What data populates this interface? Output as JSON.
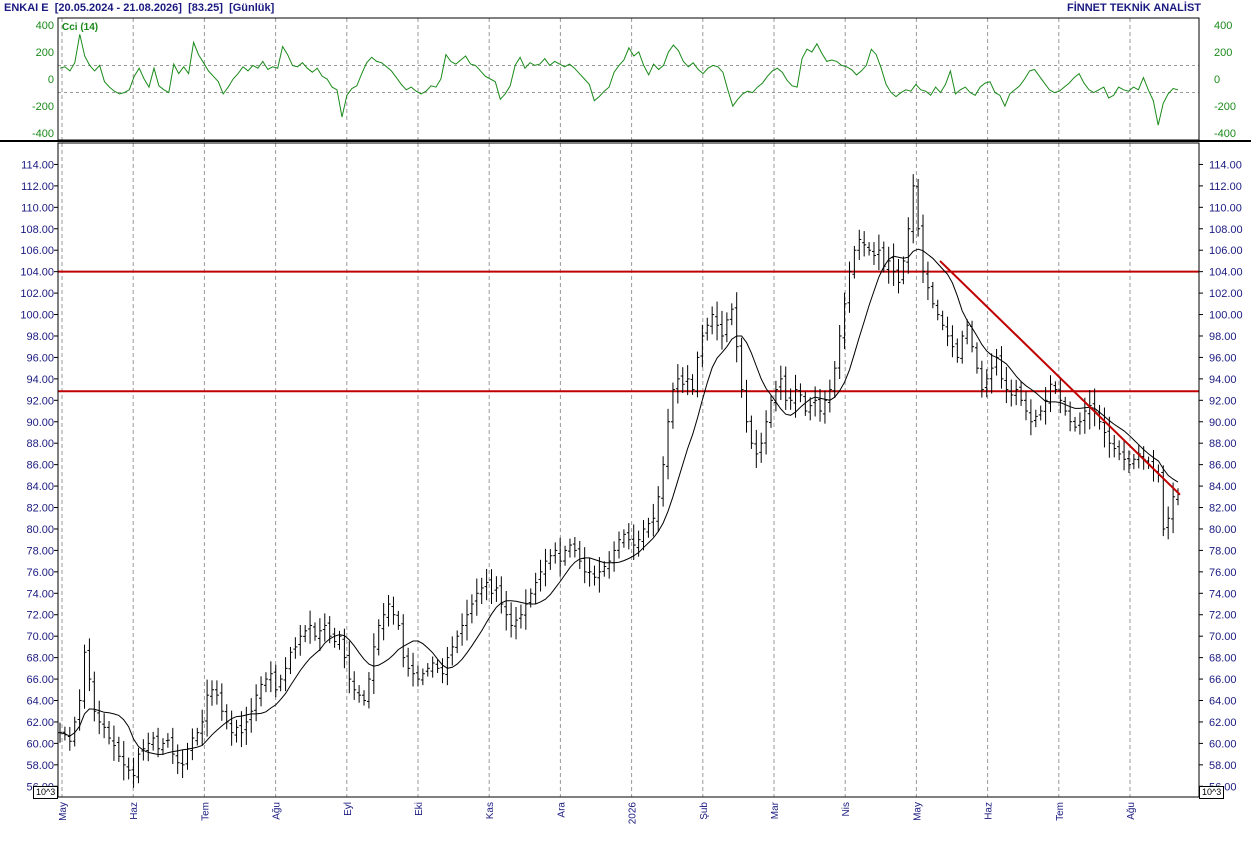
{
  "header": {
    "symbol": "ENKAI E",
    "date_range": "[20.05.2024 - 21.08.2026]",
    "last_price": "[83.25]",
    "period": "[Günlük]",
    "brand": "FİNNET TEKNİK ANALİST"
  },
  "indicator": {
    "name": "Cci (14)",
    "y_ticks": [
      "400",
      "200",
      "0",
      "-200",
      "-400"
    ],
    "y_values": [
      400,
      200,
      0,
      -200,
      -400
    ],
    "ylim": [
      -450,
      450
    ],
    "bands": [
      100,
      -100
    ]
  },
  "price_axis": {
    "unit": "10^3",
    "ylim": [
      55,
      116
    ]
  },
  "x_axis": {
    "labels": [
      "May",
      "Haz",
      "Tem",
      "Ağu",
      "Eyl",
      "Eki",
      "Kas",
      "Ara",
      "2026",
      "Şub",
      "Mar",
      "Nis",
      "May",
      "Haz",
      "Tem",
      "Ağu"
    ]
  },
  "colors": {
    "background": "#ffffff",
    "text": "#1a1a80",
    "indicator_line": "#1a8a1a",
    "horizontal_lines": "#c00000",
    "trend_line": "#c00000",
    "price_bars": "#000000",
    "moving_average": "#000000",
    "grid": "#999999"
  },
  "chart_data": [
    {
      "type": "line",
      "name": "Cci (14)",
      "ylim": [
        -450,
        450
      ],
      "grid": true,
      "x_labels": [
        "May",
        "Haz",
        "Tem",
        "Ağu",
        "Eyl",
        "Eki",
        "Kas",
        "Ara",
        "2026",
        "Şub",
        "Mar",
        "Nis",
        "May",
        "Haz",
        "Tem",
        "Ağu"
      ],
      "values": [
        80,
        90,
        60,
        120,
        330,
        170,
        100,
        60,
        100,
        -20,
        -60,
        -90,
        -110,
        -100,
        -80,
        20,
        80,
        0,
        -60,
        80,
        -50,
        -80,
        -100,
        110,
        40,
        90,
        40,
        270,
        180,
        120,
        60,
        20,
        -20,
        -110,
        -60,
        0,
        40,
        90,
        60,
        100,
        80,
        130,
        70,
        90,
        80,
        240,
        180,
        100,
        90,
        120,
        80,
        50,
        80,
        20,
        0,
        -60,
        -80,
        -280,
        -120,
        -70,
        -50,
        40,
        120,
        160,
        130,
        120,
        90,
        60,
        10,
        -40,
        -80,
        -60,
        -90,
        -110,
        -90,
        -50,
        -60,
        0,
        180,
        130,
        110,
        140,
        170,
        110,
        100,
        60,
        20,
        0,
        -20,
        -150,
        -110,
        -50,
        100,
        160,
        80,
        120,
        100,
        110,
        150,
        100,
        130,
        110,
        90,
        110,
        80,
        40,
        0,
        -40,
        -160,
        -130,
        -90,
        -60,
        50,
        100,
        140,
        230,
        170,
        200,
        100,
        30,
        110,
        70,
        100,
        200,
        250,
        210,
        130,
        90,
        120,
        70,
        40,
        80,
        100,
        90,
        50,
        -80,
        -200,
        -150,
        -110,
        -90,
        -100,
        -60,
        -30,
        20,
        60,
        80,
        50,
        -10,
        -50,
        -60,
        150,
        220,
        200,
        260,
        190,
        130,
        140,
        130,
        100,
        90,
        70,
        30,
        60,
        100,
        220,
        180,
        80,
        -40,
        -100,
        -130,
        -100,
        -80,
        -90,
        -40,
        -80,
        -90,
        -120,
        -60,
        -100,
        -40,
        60,
        -110,
        -80,
        -60,
        -100,
        -120,
        -60,
        -30,
        -20,
        -100,
        -120,
        -200,
        -110,
        -80,
        -50,
        0,
        60,
        70,
        20,
        -30,
        -80,
        -100,
        -90,
        -60,
        -30,
        10,
        40,
        -30,
        -80,
        -100,
        -80,
        -60,
        -140,
        -120,
        -60,
        -80,
        -90,
        -60,
        -80,
        10,
        -80,
        -160,
        -340,
        -180,
        -110,
        -70,
        -80
      ]
    },
    {
      "type": "ohlc",
      "name": "ENKAI E",
      "ylim": [
        55,
        116
      ],
      "y_ticks": [
        56,
        58,
        60,
        62,
        64,
        66,
        68,
        70,
        72,
        74,
        76,
        78,
        80,
        82,
        84,
        86,
        88,
        90,
        92,
        94,
        96,
        98,
        100,
        102,
        104,
        106,
        108,
        110,
        112,
        114
      ],
      "x_labels": [
        "May",
        "Haz",
        "Tem",
        "Ağu",
        "Eyl",
        "Eki",
        "Kas",
        "Ara",
        "2026",
        "Şub",
        "Mar",
        "Nis",
        "May",
        "Haz",
        "Tem",
        "Ağu"
      ],
      "closes": [
        61.0,
        60.8,
        60.2,
        62.0,
        64.0,
        68.5,
        66.0,
        63.0,
        62.0,
        61.5,
        60.5,
        59.8,
        58.8,
        58.0,
        57.5,
        57.0,
        59.0,
        59.5,
        60.0,
        60.5,
        59.5,
        60.0,
        60.3,
        59.0,
        58.2,
        58.0,
        59.5,
        60.5,
        61.0,
        62.0,
        64.5,
        65.0,
        64.5,
        63.0,
        62.0,
        61.0,
        61.5,
        61.0,
        62.0,
        63.0,
        64.5,
        65.5,
        66.0,
        66.5,
        65.0,
        66.0,
        67.0,
        68.5,
        69.0,
        70.0,
        70.5,
        71.0,
        70.0,
        70.5,
        71.0,
        70.0,
        69.5,
        70.0,
        68.0,
        66.0,
        65.0,
        64.5,
        64.0,
        66.0,
        69.0,
        71.0,
        72.0,
        73.0,
        72.0,
        71.0,
        68.0,
        67.0,
        66.5,
        66.0,
        66.5,
        67.0,
        67.5,
        67.0,
        66.5,
        68.0,
        69.0,
        70.0,
        71.0,
        72.0,
        73.0,
        74.0,
        74.5,
        75.0,
        74.0,
        74.5,
        73.0,
        72.0,
        71.0,
        71.5,
        72.0,
        73.0,
        74.0,
        75.0,
        76.0,
        77.0,
        77.5,
        78.0,
        77.0,
        78.0,
        78.5,
        78.0,
        77.0,
        76.0,
        76.0,
        75.5,
        76.0,
        76.5,
        77.0,
        78.0,
        79.0,
        79.5,
        79.0,
        78.5,
        79.0,
        80.0,
        80.5,
        81.0,
        83.0,
        86.0,
        90.0,
        93.0,
        94.0,
        93.5,
        94.0,
        93.0,
        96.0,
        98.0,
        99.0,
        100.0,
        99.0,
        98.0,
        99.5,
        100.5,
        97.0,
        93.0,
        90.0,
        88.0,
        87.0,
        88.0,
        90.0,
        92.0,
        93.0,
        94.0,
        92.0,
        92.0,
        93.0,
        92.5,
        91.0,
        91.5,
        92.0,
        91.0,
        92.0,
        93.0,
        95.0,
        98.0,
        101.0,
        104.0,
        106.0,
        107.0,
        106.5,
        106.0,
        105.5,
        106.0,
        104.5,
        105.0,
        104.0,
        103.0,
        105.0,
        108.0,
        112.0,
        108.0,
        104.0,
        102.5,
        101.0,
        100.0,
        99.0,
        98.0,
        97.0,
        96.0,
        98.0,
        99.0,
        97.0,
        95.0,
        93.0,
        94.0,
        95.0,
        96.0,
        94.0,
        93.0,
        92.5,
        93.0,
        92.0,
        91.0,
        90.0,
        90.5,
        91.0,
        92.0,
        93.5,
        93.0,
        92.0,
        91.0,
        90.0,
        89.5,
        90.0,
        91.0,
        91.5,
        91.0,
        90.0,
        89.0,
        88.0,
        87.5,
        87.0,
        86.5,
        86.0,
        86.5,
        87.0,
        86.5,
        86.0,
        85.5,
        85.0,
        80.0,
        81.0,
        83.0,
        83.25
      ]
    }
  ]
}
